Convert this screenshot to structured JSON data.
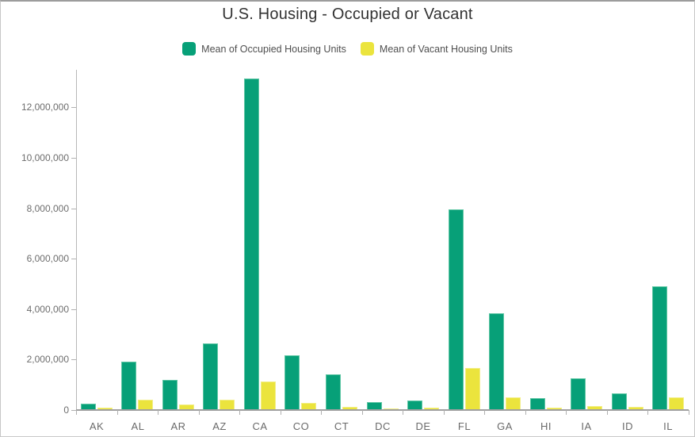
{
  "title": "U.S. Housing - Occupied or Vacant",
  "colors": {
    "occupied": "#07a078",
    "vacant": "#ebe43d",
    "title_text": "#323232",
    "legend_text": "#4f4f4f",
    "axis_text": "#6d6d6d",
    "axis_line": "#9f9f9f"
  },
  "chart_data": {
    "type": "bar",
    "title": "U.S. Housing - Occupied or Vacant",
    "xlabel": "",
    "ylabel": "",
    "grid": false,
    "legend_position": "top",
    "categories": [
      "AK",
      "AL",
      "AR",
      "AZ",
      "CA",
      "CO",
      "CT",
      "DC",
      "DE",
      "FL",
      "GA",
      "HI",
      "IA",
      "ID",
      "IL"
    ],
    "series": [
      {
        "name": "Mean of Occupied Housing Units",
        "color": "#07a078",
        "values": [
          230000,
          1880000,
          1150000,
          2620000,
          13130000,
          2130000,
          1370000,
          280000,
          360000,
          7940000,
          3820000,
          430000,
          1240000,
          640000,
          4860000
        ]
      },
      {
        "name": "Mean of Vacant Housing Units",
        "color": "#ebe43d",
        "values": [
          60000,
          370000,
          180000,
          370000,
          1090000,
          240000,
          110000,
          30000,
          60000,
          1620000,
          460000,
          70000,
          130000,
          80000,
          460000
        ]
      }
    ],
    "ylim": [
      0,
      13200000
    ],
    "yticks": [
      0,
      2000000,
      4000000,
      6000000,
      8000000,
      10000000,
      12000000
    ],
    "ytick_labels": [
      "0",
      "2,000,000",
      "4,000,000",
      "6,000,000",
      "8,000,000",
      "10,000,000",
      "12,000,000"
    ]
  }
}
